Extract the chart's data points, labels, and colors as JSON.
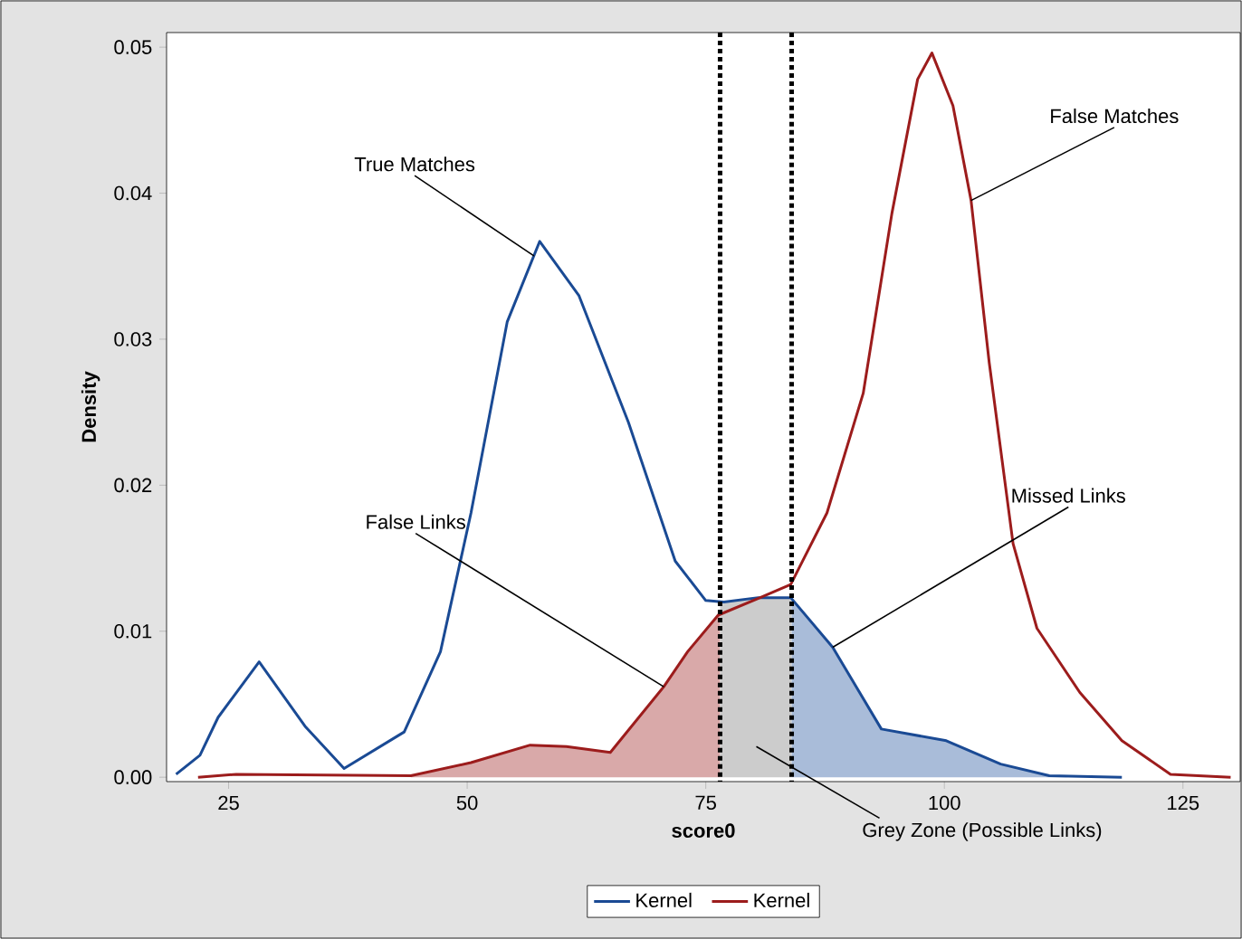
{
  "chart_data": {
    "type": "line",
    "xlabel": "score0",
    "ylabel": "Density",
    "legend": "bottom",
    "line_style": "solid",
    "marker": "none",
    "xlim": [
      18.5,
      131
    ],
    "ylim": [
      -0.0003,
      0.051
    ],
    "xticks": [
      25,
      50,
      75,
      100,
      125
    ],
    "yticks": [
      {
        "value": 0,
        "label": "0.00"
      },
      {
        "value": 0.01,
        "label": "0.01"
      },
      {
        "value": 0.02,
        "label": "0.02"
      },
      {
        "value": 0.03,
        "label": "0.03"
      },
      {
        "value": 0.04,
        "label": "0.04"
      },
      {
        "value": 0.05,
        "label": "0.05"
      }
    ],
    "series": [
      {
        "type": "area",
        "color": "#d9a9a9",
        "x": [
          44.1,
          50.4,
          56.6,
          60.4,
          65,
          70.6,
          73.1,
          76.5
        ],
        "values": [
          0.0001,
          0.001,
          0.0022,
          0.0021,
          0.0017,
          0.0062,
          0.0086,
          0.0113
        ]
      },
      {
        "type": "area",
        "color": "#cccccc",
        "x": [
          76.5,
          80.7,
          84
        ],
        "values": [
          0.012,
          0.0123,
          0.0123
        ]
      },
      {
        "type": "area",
        "color": "#a9bcd9",
        "x": [
          84,
          88.3,
          93.4,
          100.2,
          105.9,
          111,
          113
        ],
        "values": [
          0.0123,
          0.0089,
          0.0033,
          0.0025,
          0.0009,
          0.0001,
          0
        ]
      },
      {
        "name": "Kernel",
        "color": "#1a4a94",
        "x": [
          19.5,
          22,
          23.9,
          28.2,
          33,
          37.1,
          43.4,
          47.2,
          50.4,
          54.2,
          57.6,
          61.7,
          66.9,
          71.8,
          75,
          76.9,
          80.5,
          83.9,
          88.3,
          93.4,
          100.2,
          105.9,
          111,
          118.6
        ],
        "values": [
          0.0002,
          0.0015,
          0.0041,
          0.0079,
          0.0035,
          0.0006,
          0.0031,
          0.0086,
          0.0181,
          0.0312,
          0.0367,
          0.033,
          0.0243,
          0.0148,
          0.0121,
          0.012,
          0.0123,
          0.0123,
          0.0089,
          0.0033,
          0.0025,
          0.0009,
          0.0001,
          0
        ]
      },
      {
        "name": "Kernel",
        "color": "#9c1c1c",
        "x": [
          21.8,
          25.8,
          44.1,
          50.4,
          56.6,
          60.4,
          65,
          70.6,
          73.1,
          76.3,
          80.7,
          83.9,
          87.7,
          91.5,
          94.5,
          97.2,
          98.7,
          100.9,
          102.8,
          104.7,
          107.2,
          109.7,
          114.2,
          118.6,
          123.7,
          130
        ],
        "values": [
          0,
          0.0002,
          0.0001,
          0.001,
          0.0022,
          0.0021,
          0.0017,
          0.0062,
          0.0086,
          0.0111,
          0.0123,
          0.0132,
          0.0181,
          0.0263,
          0.0386,
          0.0478,
          0.0496,
          0.046,
          0.0395,
          0.0284,
          0.016,
          0.0102,
          0.0058,
          0.0025,
          0.0002,
          0
        ]
      }
    ],
    "ref_lines": [
      {
        "axis": "x",
        "value": 76.5,
        "color": "#000000",
        "line_style": "dotted"
      },
      {
        "axis": "x",
        "value": 84,
        "color": "#000000",
        "line_style": "dotted"
      }
    ],
    "annotations": [
      {
        "text": "True Matches",
        "x": 57,
        "y": 0.0357
      },
      {
        "text": "False Links",
        "x": 70.6,
        "y": 0.0062
      },
      {
        "text": "False Matches",
        "x": 102.8,
        "y": 0.0395
      },
      {
        "text": "Missed Links",
        "x": 88.3,
        "y": 0.0089
      },
      "Grey Zone (Possible Links)"
    ]
  }
}
